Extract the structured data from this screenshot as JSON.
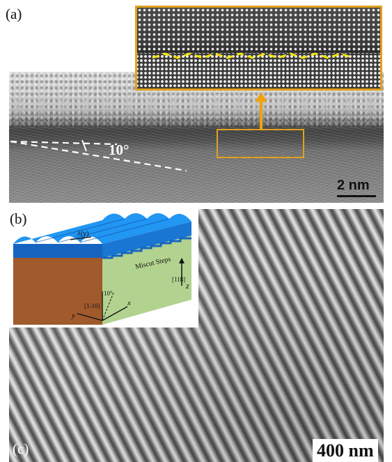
{
  "figure": {
    "panel_labels": {
      "a": "(a)",
      "b": "(b)",
      "c": "(c)"
    },
    "panel_a": {
      "angle_label": "10°",
      "scale_bar": "2 nm"
    },
    "panel_b_schematic": {
      "wavelength_label": "λ(y)",
      "steps_label": "Miscut Steps",
      "direction_118": "[118]",
      "direction_1_10": "[1-10]",
      "miscut_angle": "10°",
      "axis_x": "x",
      "axis_y": "y",
      "axis_z": "z"
    },
    "panel_c": {
      "scale_bar": "400 nm"
    },
    "colors": {
      "highlight_box": "#e0a11c",
      "arrow": "#f0a30a",
      "zigzag": "#f4e00e",
      "film_top": "#1e88e5",
      "film_body": "#1565c0",
      "substrate_side": "#b0cf8f",
      "substrate_front": "#a05a2c"
    }
  }
}
